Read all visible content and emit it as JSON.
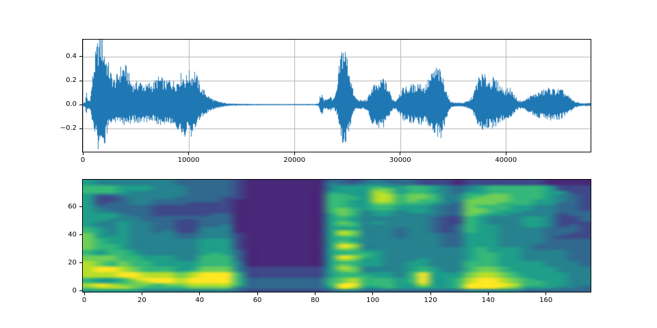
{
  "figure": {
    "kind": "matplotlib-figure",
    "background": "#ffffff",
    "spine_color": "#000000",
    "grid_color": "#b0b0b0",
    "tick_color": "#000000"
  },
  "chart_data": [
    {
      "type": "line",
      "kind": "audio-waveform",
      "title": "",
      "xlabel": "",
      "ylabel": "",
      "color": "#1f77b4",
      "grid": true,
      "legend": false,
      "xlim": [
        0,
        48000
      ],
      "ylim": [
        -0.3925,
        0.5425
      ],
      "xticks": [
        0,
        10000,
        20000,
        30000,
        40000
      ],
      "xtick_labels": [
        "0",
        "10000",
        "20000",
        "30000",
        "40000"
      ],
      "yticks": [
        -0.2,
        0.0,
        0.2,
        0.4
      ],
      "ytick_labels": [
        "−0.2",
        "0.0",
        "0.2",
        "0.4"
      ],
      "envelope_format": [
        "sample",
        "upper_amplitude",
        "lower_amplitude"
      ],
      "envelope": [
        [
          0,
          0.01,
          -0.01
        ],
        [
          250,
          0.02,
          -0.02
        ],
        [
          320,
          0.11,
          -0.09
        ],
        [
          450,
          0.03,
          -0.03
        ],
        [
          700,
          0.04,
          -0.04
        ],
        [
          900,
          0.18,
          -0.12
        ],
        [
          1100,
          0.32,
          -0.2
        ],
        [
          1400,
          0.45,
          -0.3
        ],
        [
          1700,
          0.5,
          -0.34
        ],
        [
          1900,
          0.46,
          -0.35
        ],
        [
          2100,
          0.38,
          -0.28
        ],
        [
          2400,
          0.3,
          -0.16
        ],
        [
          2700,
          0.22,
          -0.12
        ],
        [
          3000,
          0.18,
          -0.12
        ],
        [
          3300,
          0.22,
          -0.13
        ],
        [
          3600,
          0.27,
          -0.14
        ],
        [
          3900,
          0.29,
          -0.15
        ],
        [
          4200,
          0.26,
          -0.14
        ],
        [
          4500,
          0.18,
          -0.13
        ],
        [
          4800,
          0.15,
          -0.12
        ],
        [
          5100,
          0.16,
          -0.13
        ],
        [
          5400,
          0.17,
          -0.14
        ],
        [
          5700,
          0.15,
          -0.12
        ],
        [
          6000,
          0.14,
          -0.12
        ],
        [
          6300,
          0.16,
          -0.13
        ],
        [
          6600,
          0.15,
          -0.12
        ],
        [
          7000,
          0.19,
          -0.15
        ],
        [
          7300,
          0.2,
          -0.15
        ],
        [
          7600,
          0.18,
          -0.14
        ],
        [
          7900,
          0.16,
          -0.13
        ],
        [
          8200,
          0.19,
          -0.15
        ],
        [
          8500,
          0.17,
          -0.14
        ],
        [
          8800,
          0.16,
          -0.17
        ],
        [
          9100,
          0.2,
          -0.18
        ],
        [
          9400,
          0.23,
          -0.2
        ],
        [
          9700,
          0.19,
          -0.22
        ],
        [
          10000,
          0.24,
          -0.18
        ],
        [
          10300,
          0.22,
          -0.24
        ],
        [
          10600,
          0.25,
          -0.17
        ],
        [
          10900,
          0.18,
          -0.14
        ],
        [
          11200,
          0.12,
          -0.1
        ],
        [
          11500,
          0.1,
          -0.08
        ],
        [
          11800,
          0.07,
          -0.06
        ],
        [
          12100,
          0.05,
          -0.04
        ],
        [
          12500,
          0.03,
          -0.03
        ],
        [
          13000,
          0.02,
          -0.02
        ],
        [
          13500,
          0.012,
          -0.012
        ],
        [
          14200,
          0.007,
          -0.007
        ],
        [
          16000,
          0.005,
          -0.005
        ],
        [
          19000,
          0.004,
          -0.004
        ],
        [
          22000,
          0.005,
          -0.005
        ],
        [
          22300,
          0.01,
          -0.01
        ],
        [
          22450,
          0.07,
          -0.06
        ],
        [
          22600,
          0.08,
          -0.07
        ],
        [
          22800,
          0.03,
          -0.03
        ],
        [
          23100,
          0.05,
          -0.04
        ],
        [
          23400,
          0.06,
          -0.05
        ],
        [
          23700,
          0.04,
          -0.03
        ],
        [
          24000,
          0.1,
          -0.06
        ],
        [
          24200,
          0.25,
          -0.15
        ],
        [
          24450,
          0.4,
          -0.26
        ],
        [
          24650,
          0.42,
          -0.28
        ],
        [
          24850,
          0.39,
          -0.26
        ],
        [
          25050,
          0.32,
          -0.21
        ],
        [
          25250,
          0.24,
          -0.15
        ],
        [
          25450,
          0.14,
          -0.09
        ],
        [
          25650,
          0.07,
          -0.05
        ],
        [
          25950,
          0.04,
          -0.03
        ],
        [
          26400,
          0.03,
          -0.03
        ],
        [
          26900,
          0.04,
          -0.04
        ],
        [
          27200,
          0.1,
          -0.1
        ],
        [
          27500,
          0.15,
          -0.17
        ],
        [
          27800,
          0.13,
          -0.15
        ],
        [
          28100,
          0.16,
          -0.18
        ],
        [
          28400,
          0.2,
          -0.16
        ],
        [
          28700,
          0.15,
          -0.13
        ],
        [
          29000,
          0.1,
          -0.09
        ],
        [
          29300,
          0.04,
          -0.04
        ],
        [
          29600,
          0.03,
          -0.03
        ],
        [
          29900,
          0.08,
          -0.07
        ],
        [
          30200,
          0.11,
          -0.1
        ],
        [
          30500,
          0.13,
          -0.12
        ],
        [
          30800,
          0.12,
          -0.12
        ],
        [
          31100,
          0.15,
          -0.13
        ],
        [
          31400,
          0.13,
          -0.14
        ],
        [
          31700,
          0.17,
          -0.15
        ],
        [
          32000,
          0.15,
          -0.14
        ],
        [
          32300,
          0.13,
          -0.13
        ],
        [
          32600,
          0.17,
          -0.15
        ],
        [
          32900,
          0.21,
          -0.17
        ],
        [
          33200,
          0.25,
          -0.2
        ],
        [
          33500,
          0.27,
          -0.22
        ],
        [
          33800,
          0.24,
          -0.26
        ],
        [
          34100,
          0.18,
          -0.18
        ],
        [
          34400,
          0.1,
          -0.1
        ],
        [
          34600,
          0.04,
          -0.04
        ],
        [
          34900,
          0.02,
          -0.02
        ],
        [
          35400,
          0.015,
          -0.015
        ],
        [
          36000,
          0.015,
          -0.015
        ],
        [
          36500,
          0.03,
          -0.03
        ],
        [
          36900,
          0.07,
          -0.06
        ],
        [
          37200,
          0.15,
          -0.12
        ],
        [
          37500,
          0.21,
          -0.17
        ],
        [
          37800,
          0.22,
          -0.18
        ],
        [
          38100,
          0.2,
          -0.17
        ],
        [
          38400,
          0.18,
          -0.17
        ],
        [
          38800,
          0.19,
          -0.16
        ],
        [
          39200,
          0.16,
          -0.14
        ],
        [
          39600,
          0.13,
          -0.12
        ],
        [
          40000,
          0.11,
          -0.1
        ],
        [
          40400,
          0.12,
          -0.1
        ],
        [
          40800,
          0.07,
          -0.06
        ],
        [
          41200,
          0.03,
          -0.03
        ],
        [
          41700,
          0.03,
          -0.03
        ],
        [
          42200,
          0.06,
          -0.06
        ],
        [
          42800,
          0.08,
          -0.08
        ],
        [
          43400,
          0.1,
          -0.1
        ],
        [
          44000,
          0.12,
          -0.11
        ],
        [
          44600,
          0.11,
          -0.11
        ],
        [
          45200,
          0.11,
          -0.1
        ],
        [
          45700,
          0.08,
          -0.08
        ],
        [
          46200,
          0.04,
          -0.04
        ],
        [
          46600,
          0.02,
          -0.02
        ],
        [
          47200,
          0.01,
          -0.01
        ],
        [
          48000,
          0.012,
          -0.012
        ]
      ]
    },
    {
      "type": "heatmap",
      "kind": "mel-spectrogram",
      "title": "",
      "xlabel": "",
      "ylabel": "",
      "colormap": "viridis",
      "grid": false,
      "legend": false,
      "xlim": [
        -0.5,
        175.5
      ],
      "ylim": [
        -0.5,
        79.5
      ],
      "xticks": [
        0,
        20,
        40,
        60,
        80,
        100,
        120,
        140,
        160
      ],
      "xtick_labels": [
        "0",
        "20",
        "40",
        "60",
        "80",
        "100",
        "120",
        "140",
        "160"
      ],
      "yticks": [
        0,
        20,
        40,
        60
      ],
      "ytick_labels": [
        "0",
        "20",
        "40",
        "60"
      ],
      "palette": [
        "#440154",
        "#482878",
        "#3e4989",
        "#31688e",
        "#26828e",
        "#1f9e89",
        "#35b779",
        "#6ece58",
        "#b5de2b",
        "#fde725"
      ],
      "grid_cols": 44,
      "grid_rows_count": 40,
      "rows_order": "top-to-bottom",
      "grid_rows": [
        "54444444333332111111133234333222122222221111",
        "54444444333332111111143344433222122222221111",
        "66655544433332111111145556556654345666665222",
        "66655544433332111111145557756654345666665222",
        "66654444433332111111155558756654355666665522",
        "53344444433332111111166558867764466776665432",
        "52234444333322111111166658867764467776665432",
        "52234433333321111111166558867664477776655432",
        "52334433322221111111166557766654377766655332",
        "53333322222221111111166556655543376665544332",
        "54333322222221111111167656655543377665544332",
        "54433322222221111111167645545543377655444333",
        "55543322222331111111157645544443376554444233",
        "55544333333331111111156544444432265444554223",
        "55444333223331111111156544444432265444554223",
        "54454433223331111111157645444432265444554222",
        "54454433223341111111156644444432365544554232",
        "65454433224441111111155544434432365544443332",
        "65454434224441111111158744434432365544443332",
        "75454444334442111111158744434443355544443322",
        "75554444334442111111156644434443355544443222",
        "76554444445552111111156544444443355544443333",
        "76554444445552111111157644444443355544443333",
        "76654444445552111111159844444443355544433333",
        "76654444445552111111158744444444456555433333",
        "65665444445553111111156655444444456555444433",
        "65665444445653111111156665444444456655444433",
        "77766555446663111111159865444444456655444433",
        "77766555446663111111158755444544456655444433",
        "87676655556664111111156655445544466655554443",
        "87676655556664111111157655445544466655554443",
        "89987666557774222222258744445654467765555444",
        "89987666567774222222257744445654467765555444",
        "88899888789996222222256655546955578876555544",
        "88899888789996222222256665546955578876555544",
        "65568999899996333333367866656955689987655544",
        "65567899899996333333367866656955689987665544",
        "89877767788886333333369966655855699998665544",
        "78887666677774333333359855655655699987555443",
        "55555444444443222222234433333333344444333333"
      ]
    }
  ]
}
